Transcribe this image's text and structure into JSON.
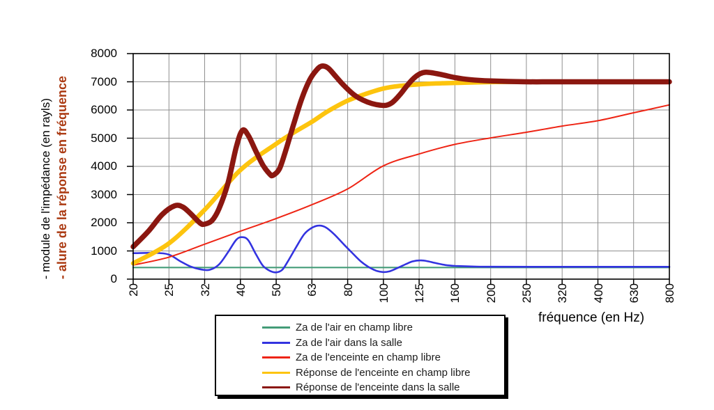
{
  "chart_data": {
    "type": "line",
    "title": "",
    "xlabel": "fréquence (en Hz)",
    "ylabel_primary": "- module de l'impédance (en rayls)",
    "ylabel_secondary": "- alure de la réponse en fréquence",
    "x_ticks": [
      20,
      25,
      32,
      40,
      50,
      63,
      80,
      100,
      125,
      160,
      200,
      250,
      320,
      400,
      630,
      800
    ],
    "x_scale": "logarithmic-categorical",
    "ylim": [
      0,
      8000
    ],
    "y_ticks": [
      0,
      1000,
      2000,
      3000,
      4000,
      5000,
      6000,
      7000,
      8000
    ],
    "grid": true,
    "legend_position": "bottom",
    "colors": {
      "background": "#ffffff",
      "grid": "#8f8f8f",
      "axis": "#000000",
      "ylabel_secondary": "#ab3a12"
    },
    "series": [
      {
        "id": "za-air-champ-libre",
        "name": "Za de l'air en champ libre",
        "color": "#449c78",
        "width": 2.2,
        "points": [
          [
            20,
            413
          ],
          [
            800,
            413
          ]
        ]
      },
      {
        "id": "za-air-salle",
        "name": "Za de l'air dans la salle",
        "color": "#3333e0",
        "width": 2.6,
        "points": [
          [
            20,
            920
          ],
          [
            23,
            930
          ],
          [
            25,
            870
          ],
          [
            27,
            640
          ],
          [
            29,
            450
          ],
          [
            31,
            350
          ],
          [
            33,
            330
          ],
          [
            35,
            520
          ],
          [
            37,
            950
          ],
          [
            39,
            1400
          ],
          [
            40.5,
            1490
          ],
          [
            42,
            1380
          ],
          [
            44,
            900
          ],
          [
            46,
            480
          ],
          [
            48,
            300
          ],
          [
            50,
            240
          ],
          [
            52,
            330
          ],
          [
            54,
            640
          ],
          [
            57,
            1150
          ],
          [
            60,
            1600
          ],
          [
            63,
            1820
          ],
          [
            66,
            1900
          ],
          [
            69,
            1840
          ],
          [
            73,
            1600
          ],
          [
            78,
            1230
          ],
          [
            82,
            950
          ],
          [
            87,
            620
          ],
          [
            92,
            400
          ],
          [
            96,
            290
          ],
          [
            100,
            250
          ],
          [
            104,
            280
          ],
          [
            109,
            390
          ],
          [
            115,
            530
          ],
          [
            120,
            630
          ],
          [
            126,
            665
          ],
          [
            132,
            640
          ],
          [
            140,
            570
          ],
          [
            150,
            500
          ],
          [
            160,
            470
          ],
          [
            180,
            448
          ],
          [
            200,
            440
          ],
          [
            300,
            438
          ],
          [
            800,
            438
          ]
        ]
      },
      {
        "id": "za-enceinte-champ-libre",
        "name": "Za de l'enceinte en champ libre",
        "color": "#ee2414",
        "width": 2,
        "points": [
          [
            20,
            500
          ],
          [
            25,
            780
          ],
          [
            32,
            1240
          ],
          [
            40,
            1700
          ],
          [
            50,
            2150
          ],
          [
            63,
            2640
          ],
          [
            80,
            3200
          ],
          [
            100,
            4020
          ],
          [
            125,
            4440
          ],
          [
            160,
            4780
          ],
          [
            200,
            5010
          ],
          [
            250,
            5210
          ],
          [
            320,
            5430
          ],
          [
            400,
            5620
          ],
          [
            630,
            5900
          ],
          [
            800,
            6180
          ]
        ]
      },
      {
        "id": "reponse-enceinte-champ-libre",
        "name": "Réponse de l'enceinte en champ libre",
        "color": "#fdc40e",
        "width": 6.5,
        "points": [
          [
            20,
            560
          ],
          [
            25,
            1270
          ],
          [
            32,
            2460
          ],
          [
            40,
            3870
          ],
          [
            50,
            4800
          ],
          [
            56,
            5200
          ],
          [
            63,
            5580
          ],
          [
            70,
            5950
          ],
          [
            80,
            6330
          ],
          [
            90,
            6580
          ],
          [
            100,
            6760
          ],
          [
            110,
            6850
          ],
          [
            125,
            6910
          ],
          [
            140,
            6940
          ],
          [
            160,
            6960
          ],
          [
            200,
            6990
          ],
          [
            250,
            7000
          ],
          [
            800,
            7000
          ]
        ]
      },
      {
        "id": "reponse-enceinte-salle",
        "name": "Réponse de l'enceinte dans la salle",
        "color": "#8b1710",
        "width": 7.5,
        "points": [
          [
            20,
            1150
          ],
          [
            22,
            1700
          ],
          [
            24,
            2300
          ],
          [
            26,
            2600
          ],
          [
            27.5,
            2560
          ],
          [
            29,
            2330
          ],
          [
            31,
            1990
          ],
          [
            32,
            1950
          ],
          [
            33.5,
            2080
          ],
          [
            35,
            2500
          ],
          [
            37,
            3400
          ],
          [
            39,
            4700
          ],
          [
            40.5,
            5280
          ],
          [
            42,
            5100
          ],
          [
            44,
            4550
          ],
          [
            46,
            4050
          ],
          [
            48,
            3730
          ],
          [
            49,
            3680
          ],
          [
            51,
            3900
          ],
          [
            53,
            4500
          ],
          [
            56,
            5500
          ],
          [
            59,
            6400
          ],
          [
            62,
            7050
          ],
          [
            64.5,
            7370
          ],
          [
            67,
            7550
          ],
          [
            70,
            7500
          ],
          [
            74,
            7180
          ],
          [
            78,
            6870
          ],
          [
            83,
            6550
          ],
          [
            88,
            6350
          ],
          [
            93,
            6230
          ],
          [
            98,
            6170
          ],
          [
            102,
            6170
          ],
          [
            106,
            6280
          ],
          [
            111,
            6550
          ],
          [
            116,
            6870
          ],
          [
            121,
            7130
          ],
          [
            126,
            7290
          ],
          [
            131,
            7340
          ],
          [
            138,
            7310
          ],
          [
            148,
            7240
          ],
          [
            160,
            7150
          ],
          [
            175,
            7080
          ],
          [
            200,
            7030
          ],
          [
            250,
            7000
          ],
          [
            320,
            7000
          ],
          [
            800,
            7000
          ]
        ]
      }
    ]
  }
}
